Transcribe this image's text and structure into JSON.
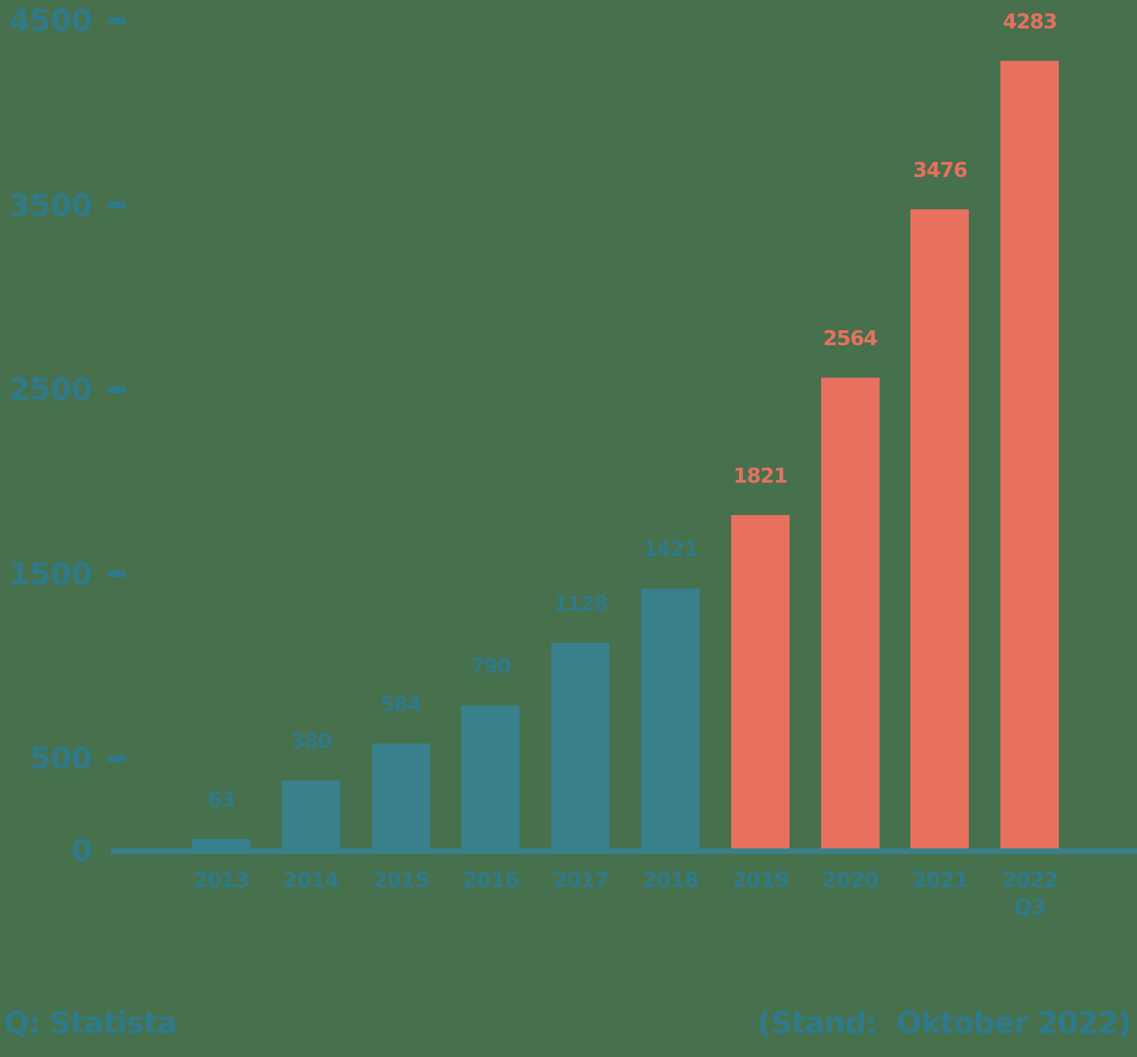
{
  "page": {
    "background_color": "#47704D"
  },
  "colors": {
    "teal_bar": "#38808B",
    "teal_text": "#2F7A8A",
    "salmon": "#E7705F",
    "axis_line": "#38808B"
  },
  "chart_data": {
    "type": "bar",
    "title": "",
    "categories": [
      "2013",
      "2014",
      "2015",
      "2016",
      "2017",
      "2018",
      "2019",
      "2020",
      "2021",
      "2022 Q3"
    ],
    "values": [
      63,
      380,
      584,
      790,
      1128,
      1421,
      1821,
      2564,
      3476,
      4283
    ],
    "bar_color_keys": [
      "teal_bar",
      "teal_bar",
      "teal_bar",
      "teal_bar",
      "teal_bar",
      "teal_bar",
      "salmon",
      "salmon",
      "salmon",
      "salmon"
    ],
    "value_label_color_keys": [
      "teal_text",
      "teal_text",
      "teal_text",
      "teal_text",
      "teal_text",
      "teal_text",
      "salmon",
      "salmon",
      "salmon",
      "salmon"
    ],
    "value_labels_shown": true,
    "yticks": [
      4500,
      3500,
      2500,
      1500,
      500,
      0
    ],
    "ylim": [
      0,
      4500
    ],
    "xlabel": "",
    "ylabel": "",
    "grid": false,
    "legend": null
  },
  "footer": {
    "source": "Q: Statista",
    "status": "(Stand:  Oktober 2022)"
  }
}
